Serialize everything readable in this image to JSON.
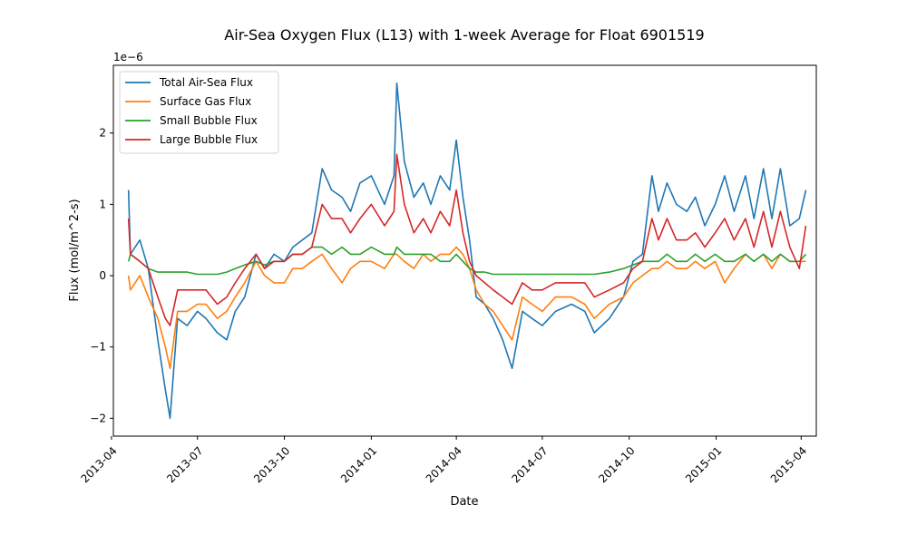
{
  "chart_data": {
    "type": "line",
    "title": "Air-Sea Oxygen Flux (L13) with 1-week Average for Float 6901519",
    "xlabel": "Date",
    "ylabel": "Flux (mol/m^2-s)",
    "y_offset_label": "1e−6",
    "y_scale": 1e-06,
    "xlim": [
      "2013-04-03",
      "2015-04-17"
    ],
    "ylim": [
      -2.25,
      2.95
    ],
    "x_ticks": [
      "2013-04",
      "2013-07",
      "2013-10",
      "2014-01",
      "2014-04",
      "2014-07",
      "2014-10",
      "2015-01",
      "2015-04"
    ],
    "x_tick_dates": [
      "2013-04-01",
      "2013-07-01",
      "2013-10-01",
      "2014-01-01",
      "2014-04-01",
      "2014-07-01",
      "2014-10-01",
      "2015-01-01",
      "2015-04-01"
    ],
    "y_ticks": [
      -2,
      -1,
      0,
      1,
      2
    ],
    "y_tick_labels": [
      "−2",
      "−1",
      "0",
      "1",
      "2"
    ],
    "grid": false,
    "legend": "top-left",
    "series": [
      {
        "name": "Total Air-Sea Flux",
        "color": "#1f77b4",
        "x": [
          "2013-04-19",
          "2013-04-21",
          "2013-05-01",
          "2013-05-10",
          "2013-05-20",
          "2013-05-28",
          "2013-06-02",
          "2013-06-10",
          "2013-06-20",
          "2013-07-01",
          "2013-07-10",
          "2013-07-22",
          "2013-08-01",
          "2013-08-10",
          "2013-08-20",
          "2013-09-01",
          "2013-09-10",
          "2013-09-20",
          "2013-10-01",
          "2013-10-10",
          "2013-10-20",
          "2013-10-30",
          "2013-11-10",
          "2013-11-20",
          "2013-12-01",
          "2013-12-10",
          "2013-12-20",
          "2014-01-01",
          "2014-01-15",
          "2014-01-25",
          "2014-01-28",
          "2014-02-05",
          "2014-02-15",
          "2014-02-25",
          "2014-03-05",
          "2014-03-15",
          "2014-03-25",
          "2014-04-01",
          "2014-04-08",
          "2014-04-15",
          "2014-04-22",
          "2014-05-01",
          "2014-05-10",
          "2014-05-20",
          "2014-05-30",
          "2014-06-10",
          "2014-06-20",
          "2014-07-01",
          "2014-07-15",
          "2014-08-01",
          "2014-08-15",
          "2014-08-25",
          "2014-09-10",
          "2014-09-25",
          "2014-10-05",
          "2014-10-15",
          "2014-10-25",
          "2014-11-01",
          "2014-11-10",
          "2014-11-20",
          "2014-12-01",
          "2014-12-10",
          "2014-12-20",
          "2014-12-31",
          "2015-01-10",
          "2015-01-20",
          "2015-02-01",
          "2015-02-10",
          "2015-02-20",
          "2015-03-01",
          "2015-03-10",
          "2015-03-20",
          "2015-03-30",
          "2015-04-06"
        ],
        "y": [
          1.2,
          0.3,
          0.5,
          0.1,
          -0.9,
          -1.6,
          -2.0,
          -0.6,
          -0.7,
          -0.5,
          -0.6,
          -0.8,
          -0.9,
          -0.5,
          -0.3,
          0.3,
          0.1,
          0.3,
          0.2,
          0.4,
          0.5,
          0.6,
          1.5,
          1.2,
          1.1,
          0.9,
          1.3,
          1.4,
          1.0,
          1.4,
          2.7,
          1.6,
          1.1,
          1.3,
          1.0,
          1.4,
          1.2,
          1.9,
          1.1,
          0.5,
          -0.3,
          -0.4,
          -0.6,
          -0.9,
          -1.3,
          -0.5,
          -0.6,
          -0.7,
          -0.5,
          -0.4,
          -0.5,
          -0.8,
          -0.6,
          -0.3,
          0.2,
          0.3,
          1.4,
          0.9,
          1.3,
          1.0,
          0.9,
          1.1,
          0.7,
          1.0,
          1.4,
          0.9,
          1.4,
          0.8,
          1.5,
          0.8,
          1.5,
          0.7,
          0.8,
          1.2
        ]
      },
      {
        "name": "Surface Gas Flux",
        "color": "#ff7f0e",
        "x": [
          "2013-04-19",
          "2013-04-21",
          "2013-05-01",
          "2013-05-10",
          "2013-05-20",
          "2013-05-28",
          "2013-06-02",
          "2013-06-10",
          "2013-06-20",
          "2013-07-01",
          "2013-07-10",
          "2013-07-22",
          "2013-08-01",
          "2013-08-10",
          "2013-08-20",
          "2013-09-01",
          "2013-09-10",
          "2013-09-20",
          "2013-10-01",
          "2013-10-10",
          "2013-10-20",
          "2013-10-30",
          "2013-11-10",
          "2013-11-20",
          "2013-12-01",
          "2013-12-10",
          "2013-12-20",
          "2014-01-01",
          "2014-01-15",
          "2014-01-25",
          "2014-01-28",
          "2014-02-05",
          "2014-02-15",
          "2014-02-25",
          "2014-03-05",
          "2014-03-15",
          "2014-03-25",
          "2014-04-01",
          "2014-04-08",
          "2014-04-15",
          "2014-04-22",
          "2014-05-01",
          "2014-05-10",
          "2014-05-20",
          "2014-05-30",
          "2014-06-10",
          "2014-06-20",
          "2014-07-01",
          "2014-07-15",
          "2014-08-01",
          "2014-08-15",
          "2014-08-25",
          "2014-09-10",
          "2014-09-25",
          "2014-10-05",
          "2014-10-15",
          "2014-10-25",
          "2014-11-01",
          "2014-11-10",
          "2014-11-20",
          "2014-12-01",
          "2014-12-10",
          "2014-12-20",
          "2014-12-31",
          "2015-01-10",
          "2015-01-20",
          "2015-02-01",
          "2015-02-10",
          "2015-02-20",
          "2015-03-01",
          "2015-03-10",
          "2015-03-20",
          "2015-03-30",
          "2015-04-06"
        ],
        "y": [
          0.0,
          -0.2,
          0.0,
          -0.3,
          -0.6,
          -1.0,
          -1.3,
          -0.5,
          -0.5,
          -0.4,
          -0.4,
          -0.6,
          -0.5,
          -0.3,
          -0.1,
          0.2,
          0.0,
          -0.1,
          -0.1,
          0.1,
          0.1,
          0.2,
          0.3,
          0.1,
          -0.1,
          0.1,
          0.2,
          0.2,
          0.1,
          0.3,
          0.3,
          0.2,
          0.1,
          0.3,
          0.2,
          0.3,
          0.3,
          0.4,
          0.3,
          0.1,
          -0.2,
          -0.4,
          -0.5,
          -0.7,
          -0.9,
          -0.3,
          -0.4,
          -0.5,
          -0.3,
          -0.3,
          -0.4,
          -0.6,
          -0.4,
          -0.3,
          -0.1,
          0.0,
          0.1,
          0.1,
          0.2,
          0.1,
          0.1,
          0.2,
          0.1,
          0.2,
          -0.1,
          0.1,
          0.3,
          0.2,
          0.3,
          0.1,
          0.3,
          0.2,
          0.2,
          0.2
        ]
      },
      {
        "name": "Small Bubble Flux",
        "color": "#2ca02c",
        "x": [
          "2013-04-19",
          "2013-04-21",
          "2013-05-01",
          "2013-05-10",
          "2013-05-20",
          "2013-05-28",
          "2013-06-02",
          "2013-06-10",
          "2013-06-20",
          "2013-07-01",
          "2013-07-10",
          "2013-07-22",
          "2013-08-01",
          "2013-08-10",
          "2013-08-20",
          "2013-09-01",
          "2013-09-10",
          "2013-09-20",
          "2013-10-01",
          "2013-10-10",
          "2013-10-20",
          "2013-10-30",
          "2013-11-10",
          "2013-11-20",
          "2013-12-01",
          "2013-12-10",
          "2013-12-20",
          "2014-01-01",
          "2014-01-15",
          "2014-01-25",
          "2014-01-28",
          "2014-02-05",
          "2014-02-15",
          "2014-02-25",
          "2014-03-05",
          "2014-03-15",
          "2014-03-25",
          "2014-04-01",
          "2014-04-08",
          "2014-04-15",
          "2014-04-22",
          "2014-05-01",
          "2014-05-10",
          "2014-05-20",
          "2014-05-30",
          "2014-06-10",
          "2014-06-20",
          "2014-07-01",
          "2014-07-15",
          "2014-08-01",
          "2014-08-15",
          "2014-08-25",
          "2014-09-10",
          "2014-09-25",
          "2014-10-05",
          "2014-10-15",
          "2014-10-25",
          "2014-11-01",
          "2014-11-10",
          "2014-11-20",
          "2014-12-01",
          "2014-12-10",
          "2014-12-20",
          "2014-12-31",
          "2015-01-10",
          "2015-01-20",
          "2015-02-01",
          "2015-02-10",
          "2015-02-20",
          "2015-03-01",
          "2015-03-10",
          "2015-03-20",
          "2015-03-30",
          "2015-04-06"
        ],
        "y": [
          0.2,
          0.3,
          0.2,
          0.1,
          0.05,
          0.05,
          0.05,
          0.05,
          0.05,
          0.02,
          0.02,
          0.02,
          0.05,
          0.1,
          0.15,
          0.2,
          0.15,
          0.2,
          0.2,
          0.3,
          0.3,
          0.4,
          0.4,
          0.3,
          0.4,
          0.3,
          0.3,
          0.4,
          0.3,
          0.3,
          0.4,
          0.3,
          0.3,
          0.3,
          0.3,
          0.2,
          0.2,
          0.3,
          0.2,
          0.1,
          0.05,
          0.05,
          0.02,
          0.02,
          0.02,
          0.02,
          0.02,
          0.02,
          0.02,
          0.02,
          0.02,
          0.02,
          0.05,
          0.1,
          0.15,
          0.2,
          0.2,
          0.2,
          0.3,
          0.2,
          0.2,
          0.3,
          0.2,
          0.3,
          0.2,
          0.2,
          0.3,
          0.2,
          0.3,
          0.2,
          0.3,
          0.2,
          0.2,
          0.3
        ]
      },
      {
        "name": "Large Bubble Flux",
        "color": "#d62728",
        "x": [
          "2013-04-19",
          "2013-04-21",
          "2013-05-01",
          "2013-05-10",
          "2013-05-20",
          "2013-05-28",
          "2013-06-02",
          "2013-06-10",
          "2013-06-20",
          "2013-07-01",
          "2013-07-10",
          "2013-07-22",
          "2013-08-01",
          "2013-08-10",
          "2013-08-20",
          "2013-09-01",
          "2013-09-10",
          "2013-09-20",
          "2013-10-01",
          "2013-10-10",
          "2013-10-20",
          "2013-10-30",
          "2013-11-10",
          "2013-11-20",
          "2013-12-01",
          "2013-12-10",
          "2013-12-20",
          "2014-01-01",
          "2014-01-15",
          "2014-01-25",
          "2014-01-28",
          "2014-02-05",
          "2014-02-15",
          "2014-02-25",
          "2014-03-05",
          "2014-03-15",
          "2014-03-25",
          "2014-04-01",
          "2014-04-08",
          "2014-04-15",
          "2014-04-22",
          "2014-05-01",
          "2014-05-10",
          "2014-05-20",
          "2014-05-30",
          "2014-06-10",
          "2014-06-20",
          "2014-07-01",
          "2014-07-15",
          "2014-08-01",
          "2014-08-15",
          "2014-08-25",
          "2014-09-10",
          "2014-09-25",
          "2014-10-05",
          "2014-10-15",
          "2014-10-25",
          "2014-11-01",
          "2014-11-10",
          "2014-11-20",
          "2014-12-01",
          "2014-12-10",
          "2014-12-20",
          "2014-12-31",
          "2015-01-10",
          "2015-01-20",
          "2015-02-01",
          "2015-02-10",
          "2015-02-20",
          "2015-03-01",
          "2015-03-10",
          "2015-03-20",
          "2015-03-30",
          "2015-04-06"
        ],
        "y": [
          0.8,
          0.3,
          0.2,
          0.1,
          -0.3,
          -0.6,
          -0.7,
          -0.2,
          -0.2,
          -0.2,
          -0.2,
          -0.4,
          -0.3,
          -0.1,
          0.1,
          0.3,
          0.1,
          0.2,
          0.2,
          0.3,
          0.3,
          0.4,
          1.0,
          0.8,
          0.8,
          0.6,
          0.8,
          1.0,
          0.7,
          0.9,
          1.7,
          1.0,
          0.6,
          0.8,
          0.6,
          0.9,
          0.7,
          1.2,
          0.6,
          0.2,
          0.0,
          -0.1,
          -0.2,
          -0.3,
          -0.4,
          -0.1,
          -0.2,
          -0.2,
          -0.1,
          -0.1,
          -0.1,
          -0.3,
          -0.2,
          -0.1,
          0.1,
          0.2,
          0.8,
          0.5,
          0.8,
          0.5,
          0.5,
          0.6,
          0.4,
          0.6,
          0.8,
          0.5,
          0.8,
          0.4,
          0.9,
          0.4,
          0.9,
          0.4,
          0.1,
          0.7
        ]
      }
    ]
  }
}
